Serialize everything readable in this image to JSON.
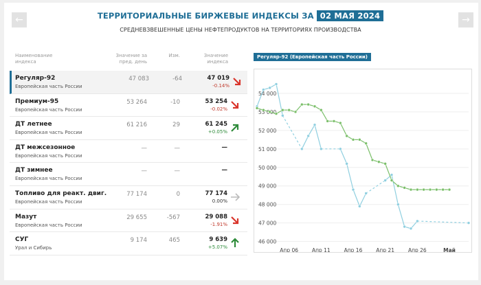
{
  "header": {
    "title": "ТЕРРИТОРИАЛЬНЫЕ БИРЖЕВЫЕ ИНДЕКСЫ ЗА",
    "date": "02 МАЯ 2024",
    "subtitle": "СРЕДНЕВЗВЕШЕННЫЕ ЦЕНЫ НЕФТЕПРОДУКТОВ НА ТЕРРИТОРИЯХ ПРОИЗВОДСТВА",
    "prev_icon": "arrow-left-icon",
    "next_icon": "arrow-right-icon"
  },
  "table": {
    "columns": [
      "Наименование\nиндекса",
      "Значение за\nпред. день",
      "Изм.",
      "Значение\nиндекса"
    ],
    "col_name": "Наименование",
    "col_name2": "индекса",
    "col_prev": "Значение за",
    "col_prev2": "пред. день",
    "col_chg": "Изм.",
    "col_val": "Значение",
    "col_val2": "индекса",
    "rows": [
      {
        "name": "Регуляр-92",
        "region": "Европейская часть России",
        "prev": "47 083",
        "chg": "-64",
        "val": "47 019",
        "pct": "-0.14%",
        "trend": "down"
      },
      {
        "name": "Премиум-95",
        "region": "Европейская часть России",
        "prev": "53 264",
        "chg": "-10",
        "val": "53 254",
        "pct": "-0.02%",
        "trend": "down"
      },
      {
        "name": "ДТ летнее",
        "region": "Европейская часть России",
        "prev": "61 216",
        "chg": "29",
        "val": "61 245",
        "pct": "+0.05%",
        "trend": "up-diag"
      },
      {
        "name": "ДТ межсезонное",
        "region": "Европейская часть России",
        "prev": "—",
        "chg": "—",
        "val": "—",
        "pct": "",
        "trend": "none"
      },
      {
        "name": "ДТ зимнее",
        "region": "Европейская часть России",
        "prev": "—",
        "chg": "—",
        "val": "—",
        "pct": "",
        "trend": "none"
      },
      {
        "name": "Топливо для реакт. двиг.",
        "region": "Европейская часть России",
        "prev": "77 174",
        "chg": "0",
        "val": "77 174",
        "pct": "0.00%",
        "trend": "flat"
      },
      {
        "name": "Мазут",
        "region": "Европейская часть России",
        "prev": "29 655",
        "chg": "-567",
        "val": "29 088",
        "pct": "-1.91%",
        "trend": "down"
      },
      {
        "name": "СУГ",
        "region": "Урал и Сибирь",
        "prev": "9 174",
        "chg": "465",
        "val": "9 639",
        "pct": "+5.07%",
        "trend": "up"
      }
    ]
  },
  "chart_title": "Регуляр-92 (Европейская часть России)",
  "colors": {
    "accent": "#1f6e96",
    "down": "#d9342b",
    "up": "#2e8b3a",
    "flat": "#bbbbbb",
    "series_blue": "#8fcfe0",
    "series_green": "#7bbf6a"
  },
  "chart_data": {
    "type": "line",
    "title": "Регуляр-92 (Европейская часть России)",
    "ylim": [
      45800,
      55000
    ],
    "y_ticks": [
      "46 000",
      "47 000",
      "48 000",
      "49 000",
      "50 000",
      "51 000",
      "52 000",
      "53 000",
      "54 000"
    ],
    "y_tick_values": [
      46000,
      47000,
      48000,
      49000,
      50000,
      51000,
      52000,
      53000,
      54000
    ],
    "x_range": [
      1,
      34
    ],
    "x_ticks": [
      "Апр 06",
      "Апр 11",
      "Апр 16",
      "Апр 21",
      "Апр 26",
      "Май"
    ],
    "x_tick_values": [
      6,
      11,
      16,
      21,
      26,
      31
    ],
    "series": [
      {
        "color": "#8fcfe0",
        "points": [
          [
            1,
            53300
          ],
          [
            2,
            54200
          ],
          [
            3,
            54300
          ],
          [
            4,
            54500
          ],
          [
            5,
            52800
          ],
          [
            8,
            51000
          ],
          [
            9,
            51700
          ],
          [
            10,
            52300
          ],
          [
            11,
            51000
          ],
          [
            14,
            51000
          ],
          [
            15,
            50200
          ],
          [
            16,
            48800
          ],
          [
            17,
            47900
          ],
          [
            18,
            48600
          ],
          [
            21,
            49300
          ],
          [
            22,
            49600
          ],
          [
            23,
            48000
          ],
          [
            24,
            46800
          ],
          [
            25,
            46700
          ],
          [
            26,
            47100
          ],
          [
            34,
            47000
          ]
        ]
      },
      {
        "color": "#7bbf6a",
        "points": [
          [
            1,
            53200
          ],
          [
            2,
            53100
          ],
          [
            3,
            53000
          ],
          [
            4,
            52900
          ],
          [
            5,
            53100
          ],
          [
            6,
            53100
          ],
          [
            7,
            53000
          ],
          [
            8,
            53400
          ],
          [
            9,
            53400
          ],
          [
            10,
            53300
          ],
          [
            11,
            53100
          ],
          [
            12,
            52500
          ],
          [
            13,
            52500
          ],
          [
            14,
            52400
          ],
          [
            15,
            51700
          ],
          [
            16,
            51500
          ],
          [
            17,
            51500
          ],
          [
            18,
            51300
          ],
          [
            19,
            50400
          ],
          [
            20,
            50300
          ],
          [
            21,
            50200
          ],
          [
            22,
            49300
          ],
          [
            23,
            49000
          ],
          [
            24,
            48900
          ],
          [
            25,
            48800
          ],
          [
            26,
            48800
          ],
          [
            27,
            48800
          ],
          [
            28,
            48800
          ],
          [
            29,
            48800
          ],
          [
            30,
            48800
          ],
          [
            31,
            48800
          ]
        ]
      }
    ]
  }
}
